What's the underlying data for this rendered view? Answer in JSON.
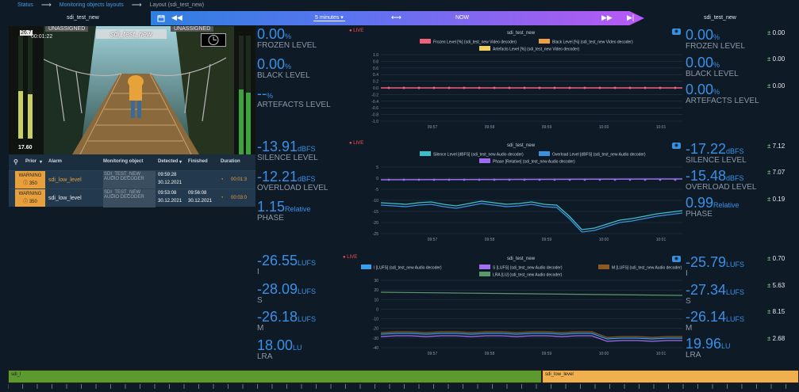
{
  "breadcrumb": {
    "status": "Status",
    "layouts": "Monitoring objects layouts",
    "current": "Layout (sdi_test_new)"
  },
  "source_title_left": "sdi_test_new",
  "source_title_right": "sdi_test_new",
  "timebar": {
    "range": "5 minutes",
    "now": "NOW"
  },
  "video": {
    "level_top": "26.7",
    "timecode": "00:01:22",
    "assigned_left": "UNASSIGNED",
    "assigned_right": "UNASSIGNED",
    "overlay_title": "sdi_test_new",
    "level_bottom": "17.60"
  },
  "alarms": {
    "columns": [
      "Prior",
      "Alarm",
      "Monitoring object",
      "Detected",
      "Finished",
      "Duration"
    ],
    "rows": [
      {
        "severity": "WARNING",
        "priority": "350",
        "alarm": "sdi_low_level",
        "object1": "SDI_TEST_NEW",
        "object2": "AUDIO DECODER",
        "detected_time": "09:59:28",
        "detected_date": "30.12.2021",
        "finished_time": "",
        "finished_date": "",
        "duration": "00:01:3"
      },
      {
        "severity": "WARNING",
        "priority": "350",
        "alarm": "sdi_low_level",
        "object1": "SDI_TEST_NEW",
        "object2": "AUDIO DECODER",
        "detected_time": "09:53:08",
        "detected_date": "30.12.2021",
        "finished_time": "09:56:08",
        "finished_date": "30.12.2021",
        "duration": "00:03:0"
      }
    ]
  },
  "live_label": "LIVE",
  "left_metrics": [
    {
      "value": "0.00",
      "unit": "%",
      "name": "FROZEN LEVEL"
    },
    {
      "value": "0.00",
      "unit": "%",
      "name": "BLACK LEVEL"
    },
    {
      "value": "--",
      "unit": "%",
      "name": "ARTEFACTS LEVEL"
    },
    {
      "value": "-13.91",
      "unit": "dBFS",
      "name": "SILENCE LEVEL"
    },
    {
      "value": "-12.21",
      "unit": "dBFS",
      "name": "OVERLOAD LEVEL"
    },
    {
      "value": "1.15",
      "unit": "Relative",
      "name": "PHASE"
    },
    {
      "value": "-26.55",
      "unit": "LUFS",
      "name": "I"
    },
    {
      "value": "-28.09",
      "unit": "LUFS",
      "name": "S"
    },
    {
      "value": "-26.18",
      "unit": "LUFS",
      "name": "M"
    },
    {
      "value": "18.00",
      "unit": "LU",
      "name": "LRA"
    }
  ],
  "right_metrics": [
    {
      "value": "0.00",
      "unit": "%",
      "name": "FROZEN LEVEL",
      "change": "0.00"
    },
    {
      "value": "0.00",
      "unit": "%",
      "name": "BLACK LEVEL",
      "change": "0.00"
    },
    {
      "value": "0.00",
      "unit": "%",
      "name": "ARTEFACTS LEVEL",
      "change": "0.00"
    },
    {
      "value": "-17.22",
      "unit": "dBFS",
      "name": "SILENCE LEVEL",
      "change": "7.12"
    },
    {
      "value": "-15.48",
      "unit": "dBFS",
      "name": "OVERLOAD LEVEL",
      "change": "7.07"
    },
    {
      "value": "0.99",
      "unit": "Relative",
      "name": "PHASE",
      "change": "0.19"
    },
    {
      "value": "-25.79",
      "unit": "LUFS",
      "name": "I",
      "change": "0.70"
    },
    {
      "value": "-27.34",
      "unit": "LUFS",
      "name": "S",
      "change": "5.63"
    },
    {
      "value": "-26.14",
      "unit": "LUFS",
      "name": "M",
      "change": "8.15"
    },
    {
      "value": "19.96",
      "unit": "LU",
      "name": "LRA",
      "change": "2.68"
    }
  ],
  "charts": [
    {
      "title": "sdi_test_new",
      "legend": [
        {
          "name": "Frozen Level [%] (sdi_test_new Video decoder)",
          "color": "#f0607a"
        },
        {
          "name": "Black Level [%] (sdi_test_new Video decoder)",
          "color": "#f0a040"
        },
        {
          "name": "Artefacts Level [%] (sdi_test_new Video decoder)",
          "color": "#f0d060"
        }
      ],
      "y_ticks": [
        "1.0",
        "0.8",
        "0.6",
        "0.4",
        "0.2",
        "0.0",
        "-0.2",
        "-0.4",
        "-0.6",
        "-0.8",
        "-1.0"
      ],
      "x_ticks": [
        "09:57",
        "09:58",
        "09:59",
        "10:00",
        "10:01"
      ]
    },
    {
      "title": "sdi_test_new",
      "legend": [
        {
          "name": "Silence Level [dBFS] (sdi_test_new Audio decoder)",
          "color": "#3cc0c8"
        },
        {
          "name": "Overload Level [dBFS] (sdi_test_new Audio decoder)",
          "color": "#3c90e0"
        },
        {
          "name": "Phase [Relative] (sdi_test_new Audio decoder)",
          "color": "#9b6cf0"
        }
      ],
      "y_ticks": [
        "5",
        "0",
        "-5",
        "-10",
        "-15",
        "-20",
        "-25"
      ],
      "x_ticks": [
        "09:57",
        "09:58",
        "09:59",
        "10:00",
        "10:01"
      ]
    },
    {
      "title": "sdi_test_new",
      "legend": [
        {
          "name": "I [LUFS] (sdi_test_new Audio decoder)",
          "color": "#3c9ee8"
        },
        {
          "name": "S [LUFS] (sdi_test_new Audio decoder)",
          "color": "#a070f0"
        },
        {
          "name": "M [LUFS] (sdi_test_new Audio decoder)",
          "color": "#8a5a20"
        },
        {
          "name": "LRA [LU] (sdi_test_new Audio decoder)",
          "color": "#5a9a6a"
        }
      ],
      "y_ticks": [
        "30",
        "20",
        "10",
        "0",
        "-10",
        "-20",
        "-30",
        "-40"
      ],
      "x_ticks": [
        "09:57",
        "09:58",
        "09:59",
        "10:00",
        "10:01"
      ]
    }
  ],
  "timeline": {
    "segments": [
      {
        "label": "sdi_l",
        "color": "#5c9a2f"
      },
      {
        "label": "sdi_low_level",
        "color": "#f0b050"
      }
    ]
  }
}
